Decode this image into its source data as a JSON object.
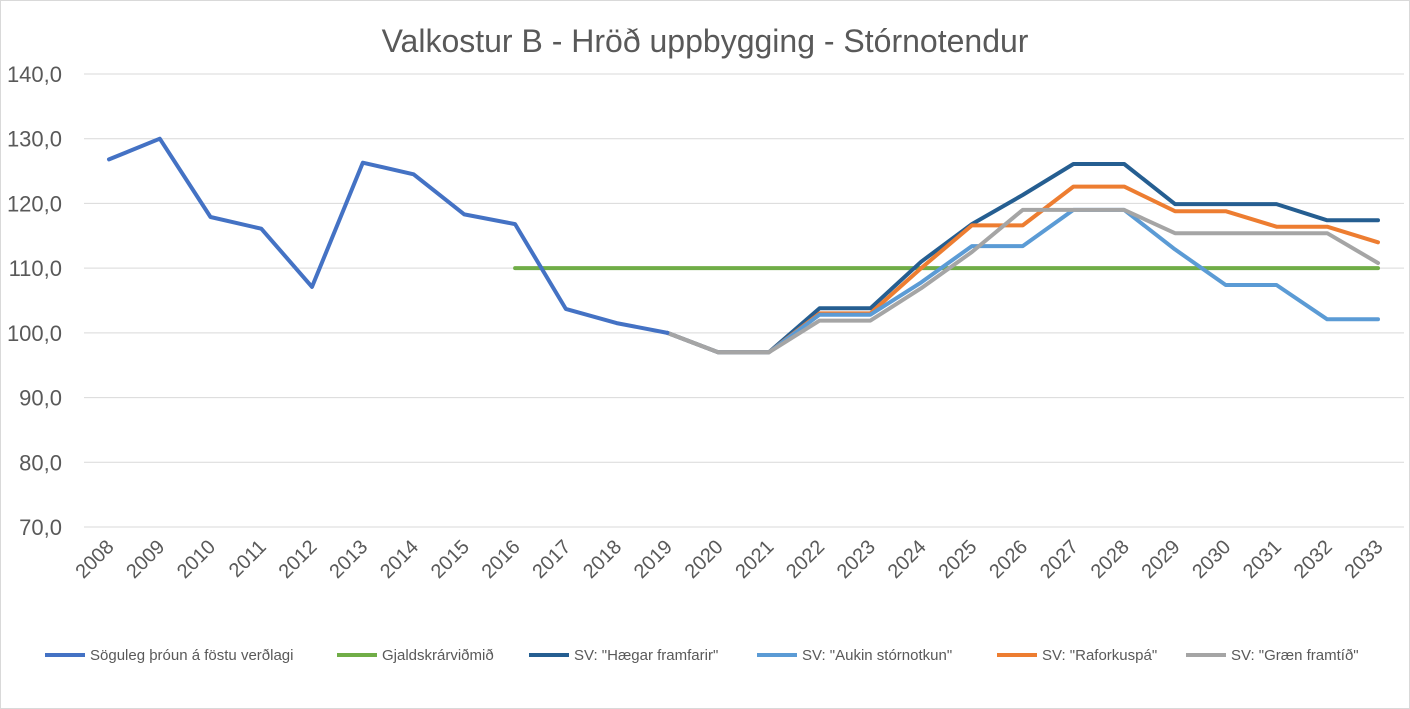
{
  "chart_data": {
    "type": "line",
    "title": "Valkostur B - Hröð uppbygging - Stórnotendur",
    "xlabel": "",
    "ylabel": "",
    "ylim": [
      70,
      140
    ],
    "yticks": [
      "70,0",
      "80,0",
      "90,0",
      "100,0",
      "110,0",
      "120,0",
      "130,0",
      "140,0"
    ],
    "ytick_values": [
      70,
      80,
      90,
      100,
      110,
      120,
      130,
      140
    ],
    "categories": [
      "2008",
      "2009",
      "2010",
      "2011",
      "2012",
      "2013",
      "2014",
      "2015",
      "2016",
      "2017",
      "2018",
      "2019",
      "2020",
      "2021",
      "2022",
      "2023",
      "2024",
      "2025",
      "2026",
      "2027",
      "2028",
      "2029",
      "2030",
      "2031",
      "2032",
      "2033"
    ],
    "grid": true,
    "legend_position": "bottom",
    "series": [
      {
        "name": "Söguleg þróun á föstu verðlagi",
        "color": "#4472c4",
        "values": [
          126.8,
          130.0,
          117.9,
          116.1,
          107.1,
          126.3,
          124.5,
          118.3,
          116.8,
          103.7,
          101.5,
          100.0,
          null,
          null,
          null,
          null,
          null,
          null,
          null,
          null,
          null,
          null,
          null,
          null,
          null,
          null
        ]
      },
      {
        "name": "Gjaldskrárviðmið",
        "color": "#70ad47",
        "values": [
          null,
          null,
          null,
          null,
          null,
          null,
          null,
          null,
          110.0,
          110.0,
          110.0,
          110.0,
          110.0,
          110.0,
          110.0,
          110.0,
          110.0,
          110.0,
          110.0,
          110.0,
          110.0,
          110.0,
          110.0,
          110.0,
          110.0,
          110.0
        ]
      },
      {
        "name": "SV: \"Hægar framfarir\"",
        "color": "#255e91",
        "values": [
          null,
          null,
          null,
          null,
          null,
          null,
          null,
          null,
          null,
          null,
          null,
          100.0,
          97.0,
          97.0,
          103.8,
          103.8,
          111.0,
          116.8,
          121.3,
          126.1,
          126.1,
          119.9,
          119.9,
          119.9,
          117.4,
          117.4
        ]
      },
      {
        "name": "SV: \"Aukin stórnotkun\"",
        "color": "#5b9bd5",
        "values": [
          null,
          null,
          null,
          null,
          null,
          null,
          null,
          null,
          null,
          null,
          null,
          100.0,
          97.0,
          97.0,
          102.8,
          102.8,
          107.8,
          113.4,
          113.4,
          119.0,
          119.0,
          112.9,
          107.4,
          107.4,
          102.1,
          102.1
        ]
      },
      {
        "name": "SV: \"Raforkuspá\"",
        "color": "#ed7d31",
        "values": [
          null,
          null,
          null,
          null,
          null,
          null,
          null,
          null,
          null,
          null,
          null,
          100.0,
          97.0,
          97.0,
          103.0,
          103.0,
          110.0,
          116.6,
          116.6,
          122.6,
          122.6,
          118.8,
          118.8,
          116.4,
          116.4,
          114.0
        ]
      },
      {
        "name": "SV: \"Græn framtíð\"",
        "color": "#a5a5a5",
        "values": [
          null,
          null,
          null,
          null,
          null,
          null,
          null,
          null,
          null,
          null,
          null,
          100.0,
          97.0,
          97.0,
          101.9,
          101.9,
          106.9,
          112.5,
          119.0,
          119.0,
          119.0,
          115.4,
          115.4,
          115.4,
          115.4,
          110.8
        ]
      }
    ]
  }
}
